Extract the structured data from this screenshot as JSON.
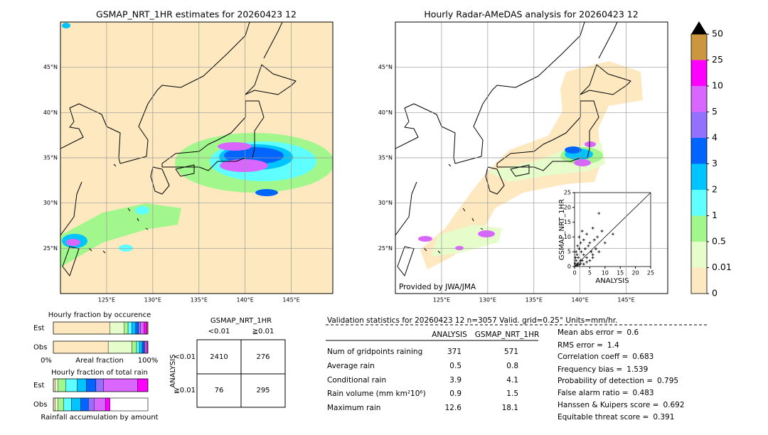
{
  "maps": [
    {
      "title": "GSMAP_NRT_1HR estimates for 20260423 12",
      "xlim": [
        120,
        149.5
      ],
      "ylim": [
        20,
        50
      ],
      "xticks": [
        {
          "value": 125,
          "label": "125°E"
        },
        {
          "value": 130,
          "label": "130°E"
        },
        {
          "value": 135,
          "label": "135°E"
        },
        {
          "value": 140,
          "label": "140°E"
        },
        {
          "value": 145,
          "label": "145°E"
        }
      ],
      "yticks": [
        {
          "value": 45,
          "label": "45°N"
        },
        {
          "value": 40,
          "label": "40°N"
        },
        {
          "value": 35,
          "label": "35°N"
        },
        {
          "value": 30,
          "label": "30°N"
        },
        {
          "value": 25,
          "label": "25°N"
        }
      ]
    },
    {
      "title": "Hourly Radar-AMeDAS analysis for 20260423 12",
      "credit": "Provided by JWA/JMA",
      "xlim": [
        120,
        149.5
      ],
      "ylim": [
        20,
        50
      ],
      "xticks": [
        {
          "value": 125,
          "label": "125°E"
        },
        {
          "value": 130,
          "label": "130°E"
        },
        {
          "value": 135,
          "label": "135°E"
        },
        {
          "value": 140,
          "label": "140°E"
        },
        {
          "value": 145,
          "label": "145°E"
        }
      ],
      "yticks": [
        {
          "value": 45,
          "label": "45°N"
        },
        {
          "value": 40,
          "label": "40°N"
        },
        {
          "value": 35,
          "label": "35°N"
        },
        {
          "value": 30,
          "label": "30°N"
        },
        {
          "value": 25,
          "label": "25°N"
        }
      ]
    }
  ],
  "colorbar": {
    "levels": [
      0,
      0.01,
      0.5,
      1,
      2,
      3,
      4,
      5,
      10,
      25,
      50
    ],
    "colors": [
      "#fde8c0",
      "#e6fcca",
      "#a2f78c",
      "#60ffff",
      "#00c4ff",
      "#0064ff",
      "#9470ff",
      "#d866ff",
      "#ff00ff",
      "#cc9640"
    ]
  },
  "scatter": {
    "type": "scatter",
    "xlabel": "ANALYSIS",
    "ylabel": "GSMAP_NRT_1HR",
    "xlim": [
      0,
      25
    ],
    "ylim": [
      0,
      25
    ],
    "xticks": [
      0,
      5,
      10,
      15,
      20,
      25
    ],
    "yticks": [
      0,
      5,
      10,
      15,
      20,
      25
    ],
    "x": [
      0.2,
      0.3,
      0.5,
      0.5,
      0.8,
      1,
      1,
      1.2,
      1.5,
      1.5,
      2,
      2,
      2.2,
      2.5,
      3,
      3,
      3.5,
      4,
      4,
      4.5,
      5,
      5,
      5.5,
      6,
      6,
      6.5,
      7,
      7.5,
      8,
      8,
      9,
      10,
      1,
      2,
      3,
      0.5,
      1.5,
      2.5,
      4,
      6,
      12.6
    ],
    "y": [
      1,
      3,
      2,
      5,
      4,
      1,
      7,
      3,
      6,
      10,
      2,
      8,
      5,
      12,
      4,
      9,
      6,
      3,
      11,
      7,
      2,
      8,
      5,
      4,
      13,
      9,
      6,
      10,
      5,
      18,
      12,
      8,
      0.5,
      1,
      0.8,
      0.3,
      0.6,
      2,
      1.5,
      3,
      11
    ]
  },
  "occurrence": {
    "title": "Hourly fraction by occurence",
    "xlabel": "Areal fraction",
    "xlim": [
      0,
      100
    ],
    "xticks": [
      {
        "value": 0,
        "label": "0%"
      },
      {
        "value": 100,
        "label": "100%"
      }
    ],
    "rows": [
      {
        "name": "Est",
        "values": [
          60,
          15,
          4,
          4,
          4,
          3,
          2,
          4,
          3,
          1
        ]
      },
      {
        "name": "Obs",
        "values": [
          58,
          25,
          5,
          3,
          3,
          2,
          1,
          2,
          1,
          0
        ]
      }
    ]
  },
  "total": {
    "title": "Hourly fraction of total rain",
    "footer": "Rainfall accumulation by amount",
    "xlim": [
      0,
      100
    ],
    "rows": [
      {
        "name": "Est",
        "values": [
          2,
          3,
          8,
          12,
          10,
          10,
          8,
          36,
          11,
          0
        ]
      },
      {
        "name": "Obs",
        "values": [
          2,
          3,
          6,
          8,
          10,
          8,
          6,
          12,
          5,
          0
        ]
      }
    ]
  },
  "contingency": {
    "title": "GSMAP_NRT_1HR",
    "row_axis": "ANALYSIS",
    "columns": [
      "<0.01",
      "≧0.01"
    ],
    "rows": [
      "<0.01",
      "≧0.01"
    ],
    "cells": [
      [
        2410,
        276
      ],
      [
        76,
        295
      ]
    ]
  },
  "validation": {
    "header": "Validation statistics for 20260423 12  n=3057 Valid. grid=0.25° Units=mm/hr.",
    "columns": [
      "ANALYSIS",
      "GSMAP_NRT_1HR"
    ],
    "rows": [
      {
        "label": "Num of gridpoints raining",
        "values": [
          371,
          571
        ]
      },
      {
        "label": "Average rain",
        "values": [
          0.5,
          0.8
        ]
      },
      {
        "label": "Conditional rain",
        "values": [
          3.9,
          4.1
        ]
      },
      {
        "label": "Rain volume (mm km²10⁶)",
        "values": [
          0.9,
          1.5
        ]
      },
      {
        "label": "Maximum rain",
        "values": [
          12.6,
          18.1
        ]
      }
    ],
    "scores": [
      {
        "label": "Mean abs error =",
        "value": 0.6
      },
      {
        "label": "RMS error =",
        "value": 1.4
      },
      {
        "label": "Correlation coeff =",
        "value": 0.683
      },
      {
        "label": "Frequency bias =",
        "value": 1.539
      },
      {
        "label": "Probability of detection =",
        "value": 0.795
      },
      {
        "label": "False alarm ratio =",
        "value": 0.483
      },
      {
        "label": "Hanssen & Kuipers score =",
        "value": 0.692
      },
      {
        "label": "Equitable threat score =",
        "value": 0.391
      }
    ]
  }
}
